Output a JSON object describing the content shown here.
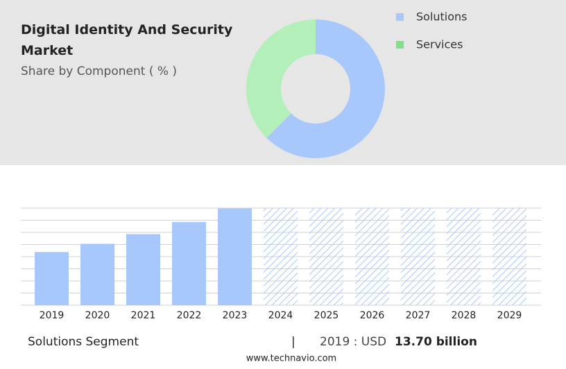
{
  "chart_data": [
    {
      "type": "donut",
      "title": "Digital Identity And Security Market",
      "subtitle": "Share by Component ( % )",
      "categories": [
        "Solutions",
        "Services"
      ],
      "values": [
        62.5,
        37.5
      ],
      "colors": [
        "#a8c8fc",
        "#b3efb9"
      ],
      "legend_colors": [
        "#a8c8fc",
        "#7ee08b"
      ]
    },
    {
      "type": "bar",
      "categories": [
        "2019",
        "2020",
        "2021",
        "2022",
        "2023",
        "2024",
        "2025",
        "2026",
        "2027",
        "2028",
        "2029"
      ],
      "values": [
        13.7,
        15.8,
        18.3,
        21.4,
        24.9,
        null,
        null,
        null,
        null,
        null,
        null
      ],
      "color": "#a8c8fc",
      "ylim": [
        0,
        25
      ],
      "yticks": [
        0,
        3.125,
        6.25,
        9.375,
        12.5,
        15.625,
        18.75,
        21.875,
        25
      ],
      "grid": true,
      "footer": {
        "segment": "Solutions Segment",
        "separator": "|",
        "year_label": "2019 : USD",
        "value_label": "13.70 billion",
        "source": "www.technavio.com"
      }
    }
  ]
}
